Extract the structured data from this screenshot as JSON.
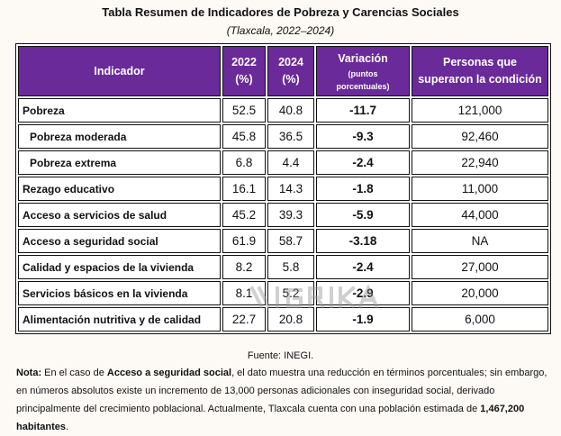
{
  "title": "Tabla Resumen de Indicadores de Pobreza y Carencias Sociales",
  "subtitle": "(Tlaxcala, 2022–2024)",
  "headers": {
    "indicador": "Indicador",
    "y2022": "2022",
    "y2022_unit": "(%)",
    "y2024": "2024",
    "y2024_unit": "(%)",
    "variacion": "Variación",
    "variacion_unit": "(puntos porcentuales)",
    "personas": "Personas que superaron la condición"
  },
  "rows": [
    {
      "indicador": "Pobreza",
      "y2022": "52.5",
      "y2024": "40.8",
      "variacion": "-11.7",
      "personas": "121,000"
    },
    {
      "indicador": "Pobreza moderada",
      "y2022": "45.8",
      "y2024": "36.5",
      "variacion": "-9.3",
      "personas": "92,460"
    },
    {
      "indicador": "Pobreza extrema",
      "y2022": "6.8",
      "y2024": "4.4",
      "variacion": "-2.4",
      "personas": "22,940"
    },
    {
      "indicador": "Rezago educativo",
      "y2022": "16.1",
      "y2024": "14.3",
      "variacion": "-1.8",
      "personas": "11,000"
    },
    {
      "indicador": "Acceso a servicios de salud",
      "y2022": "45.2",
      "y2024": "39.3",
      "variacion": "-5.9",
      "personas": "44,000"
    },
    {
      "indicador": "Acceso a seguridad social",
      "y2022": "61.9",
      "y2024": "58.7",
      "variacion": "-3.18",
      "personas": "NA"
    },
    {
      "indicador": "Calidad y espacios de la vivienda",
      "y2022": "8.2",
      "y2024": "5.8",
      "variacion": "-2.4",
      "personas": "27,000"
    },
    {
      "indicador": "Servicios básicos en la vivienda",
      "y2022": "8.1",
      "y2024": "5.2",
      "variacion": "-2.9",
      "personas": "20,000"
    },
    {
      "indicador": "Alimentación nutritiva y de calidad",
      "y2022": "22.7",
      "y2024": "20.8",
      "variacion": "-1.9",
      "personas": "6,000"
    }
  ],
  "source": "Fuente: INEGI.",
  "note": {
    "label": "Nota:",
    "t1": " En el caso de ",
    "b1": "Acceso a seguridad social",
    "t2": ", el dato muestra una reducción en términos porcentuales; sin embargo, en números absolutos existe un incremento de 13,000 personas adicionales con inseguridad social, derivado principalmente del crecimiento poblacional. Actualmente, Tlaxcala cuenta con una población estimada de ",
    "b2": "1,467,200 habitantes",
    "t3": "."
  },
  "watermark": "IGRIKA",
  "colors": {
    "header_bg": "#6a2a9a"
  }
}
